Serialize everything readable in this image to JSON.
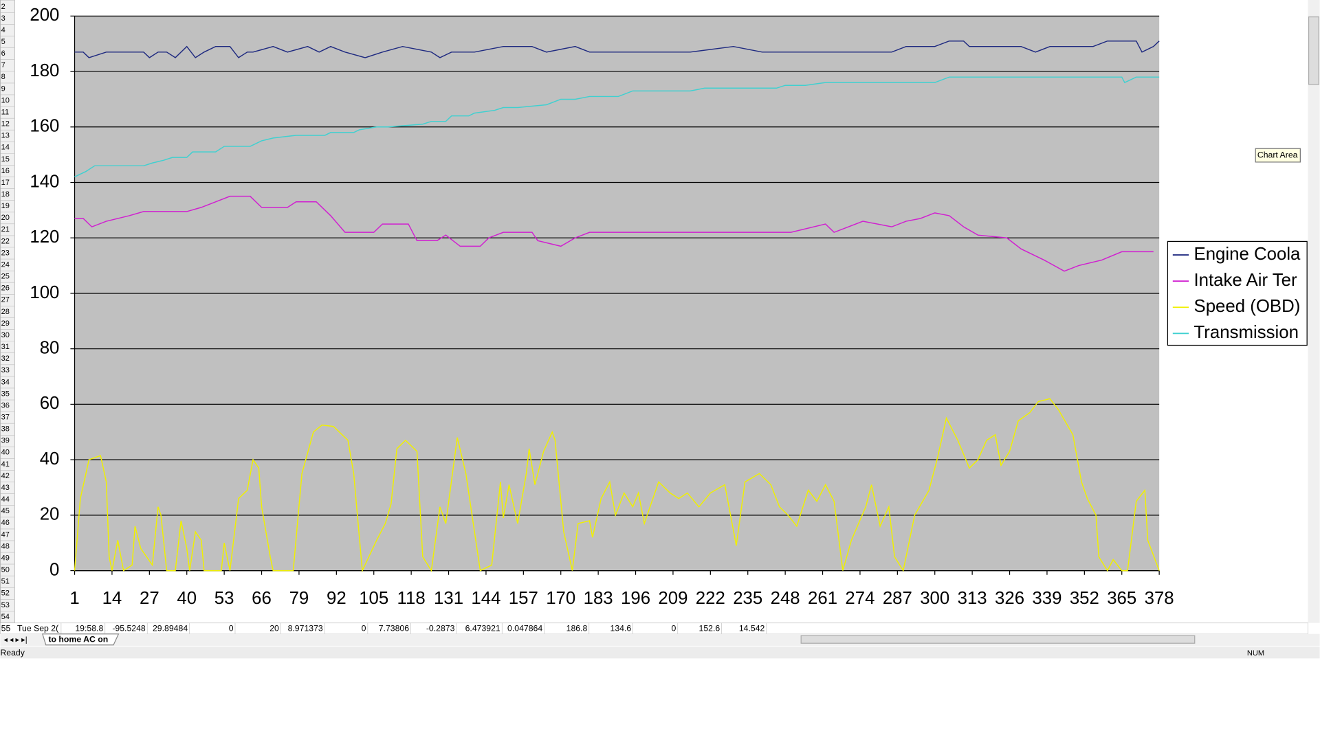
{
  "chart_data": {
    "type": "line",
    "xlim": [
      1,
      378
    ],
    "xticks": [
      1,
      14,
      27,
      40,
      53,
      66,
      79,
      92,
      105,
      118,
      131,
      144,
      157,
      170,
      183,
      196,
      209,
      222,
      235,
      248,
      261,
      274,
      287,
      300,
      313,
      326,
      339,
      352,
      365,
      378
    ],
    "ylim": [
      0,
      200
    ],
    "yticks": [
      0,
      20,
      40,
      60,
      80,
      100,
      120,
      140,
      160,
      180,
      200
    ],
    "grid": true,
    "legend": "right",
    "series": [
      {
        "name": "Engine Coola",
        "color": "#1f2a80",
        "x": [
          1,
          4,
          6,
          12,
          25,
          27,
          30,
          33,
          36,
          40,
          43,
          46,
          50,
          55,
          58,
          61,
          63,
          70,
          75,
          82,
          86,
          90,
          95,
          102,
          108,
          115,
          125,
          128,
          132,
          140,
          150,
          160,
          165,
          175,
          180,
          190,
          200,
          215,
          230,
          240,
          260,
          270,
          285,
          290,
          300,
          305,
          310,
          312,
          330,
          335,
          340,
          355,
          360,
          370,
          372,
          376,
          378
        ],
        "values": [
          187,
          187,
          185,
          187,
          187,
          185,
          187,
          187,
          185,
          189,
          185,
          187,
          189,
          189,
          185,
          187,
          187,
          189,
          187,
          189,
          187,
          189,
          187,
          185,
          187,
          189,
          187,
          185,
          187,
          187,
          189,
          189,
          187,
          189,
          187,
          187,
          187,
          187,
          189,
          187,
          187,
          187,
          187,
          189,
          189,
          191,
          191,
          189,
          189,
          187,
          189,
          189,
          191,
          191,
          187,
          189,
          191
        ]
      },
      {
        "name": "Intake Air Ter",
        "color": "#d020d0",
        "x": [
          1,
          4,
          7,
          12,
          20,
          25,
          40,
          45,
          50,
          55,
          62,
          66,
          75,
          78,
          85,
          90,
          95,
          105,
          108,
          117,
          120,
          127,
          130,
          135,
          142,
          145,
          150,
          160,
          162,
          170,
          175,
          180,
          250,
          262,
          265,
          275,
          285,
          290,
          295,
          300,
          305,
          310,
          315,
          325,
          330,
          338,
          345,
          350,
          358,
          365,
          376
        ],
        "values": [
          127,
          127,
          124,
          126,
          128,
          129.5,
          129.5,
          131,
          133,
          135,
          135,
          131,
          131,
          133,
          133,
          128,
          122,
          122,
          125,
          125,
          119,
          119,
          121,
          117,
          117,
          120,
          122,
          122,
          119,
          117,
          120,
          122,
          122,
          125,
          122,
          126,
          124,
          126,
          127,
          129,
          128,
          124,
          121,
          120,
          116,
          112,
          108,
          110,
          112,
          115,
          115
        ]
      },
      {
        "name": "Speed (OBD)",
        "color": "#f0f000",
        "x": [
          1,
          3,
          6,
          10,
          12,
          13,
          14,
          16,
          18,
          21,
          22,
          24,
          28,
          30,
          31,
          33,
          36,
          38,
          40,
          41,
          43,
          45,
          46,
          52,
          53,
          55,
          58,
          61,
          63,
          65,
          66,
          69,
          70,
          77,
          80,
          84,
          87,
          91,
          96,
          98,
          101,
          106,
          109,
          111,
          113,
          116,
          120,
          122,
          125,
          128,
          130,
          134,
          137,
          140,
          142,
          146,
          149,
          150,
          152,
          155,
          158,
          159,
          161,
          164,
          167,
          168,
          171,
          174,
          176,
          180,
          181,
          184,
          187,
          189,
          192,
          195,
          197,
          199,
          202,
          204,
          208,
          211,
          214,
          218,
          222,
          227,
          231,
          234,
          239,
          243,
          246,
          249,
          252,
          256,
          259,
          262,
          265,
          268,
          271,
          276,
          278,
          281,
          284,
          286,
          289,
          293,
          298,
          301,
          304,
          308,
          312,
          315,
          318,
          321,
          323,
          326,
          329,
          333,
          336,
          340,
          343,
          348,
          351,
          353,
          356,
          357,
          360,
          362,
          365,
          367,
          370,
          373,
          374,
          378
        ],
        "values": [
          0,
          26,
          40,
          41.5,
          32,
          5,
          0,
          11,
          0,
          2,
          16,
          8,
          2,
          23,
          20,
          0,
          0,
          18,
          8,
          0,
          14,
          11,
          0,
          0,
          10,
          0,
          26,
          29,
          40,
          37,
          23,
          5,
          0,
          0,
          35,
          50,
          52.5,
          52,
          47,
          35,
          0,
          11,
          17,
          24,
          44,
          47,
          43,
          5,
          0,
          23,
          17,
          48,
          35,
          14,
          0,
          2,
          32,
          19,
          31,
          17,
          35,
          44,
          31,
          43,
          50,
          47,
          14,
          0,
          17,
          18,
          12,
          26,
          32,
          20,
          28,
          23,
          28,
          17,
          26,
          32,
          28,
          26,
          28,
          23,
          28,
          31,
          9,
          32,
          35,
          31,
          23,
          20,
          16,
          29,
          25,
          31,
          25,
          0,
          11,
          23,
          31,
          16,
          23,
          5,
          0,
          20,
          29,
          41,
          55,
          47,
          37,
          40,
          47,
          49,
          38,
          43,
          54,
          57,
          61,
          62,
          58,
          49,
          32,
          26,
          20,
          5,
          0,
          4,
          0,
          0,
          25,
          29,
          11,
          0
        ]
      },
      {
        "name": "Transmission",
        "color": "#40d0d0",
        "x": [
          1,
          5,
          8,
          25,
          28,
          32,
          35,
          40,
          42,
          50,
          53,
          62,
          66,
          70,
          78,
          88,
          90,
          98,
          100,
          106,
          110,
          122,
          125,
          130,
          132,
          138,
          140,
          147,
          150,
          155,
          165,
          170,
          175,
          180,
          190,
          195,
          215,
          220,
          245,
          248,
          255,
          262,
          280,
          300,
          305,
          365,
          366,
          370,
          378
        ],
        "values": [
          142,
          144,
          146,
          146,
          147,
          148,
          149,
          149,
          151,
          151,
          153,
          153,
          155,
          156,
          157,
          157,
          158,
          158,
          159,
          160,
          160,
          161,
          162,
          162,
          164,
          164,
          165,
          166,
          167,
          167,
          168,
          170,
          170,
          171,
          171,
          173,
          173,
          174,
          174,
          175,
          175,
          176,
          176,
          176,
          178,
          178,
          176,
          178,
          178
        ]
      }
    ]
  },
  "tooltip": "Chart Area",
  "row_headers": [
    2,
    3,
    4,
    5,
    6,
    7,
    8,
    9,
    10,
    11,
    12,
    13,
    14,
    15,
    16,
    17,
    18,
    19,
    20,
    21,
    22,
    23,
    24,
    25,
    26,
    27,
    28,
    29,
    30,
    31,
    32,
    33,
    34,
    35,
    36,
    37,
    38,
    39,
    40,
    41,
    42,
    43,
    44,
    45,
    46,
    47,
    48,
    49,
    50,
    51,
    52,
    53,
    54
  ],
  "last_row": {
    "number": "55",
    "cells": [
      "Tue Sep 2(",
      "19:58.8",
      "-95.5248",
      "29.89484",
      "0",
      "20",
      "8.971373",
      "0",
      "7.73806",
      "-0.2873",
      "6.473921",
      "0.047864",
      "186.8",
      "134.6",
      "0",
      "152.6",
      "14.542"
    ]
  },
  "sheet_tab": "to home AC on",
  "status": {
    "left": "Ready",
    "num": "NUM"
  }
}
